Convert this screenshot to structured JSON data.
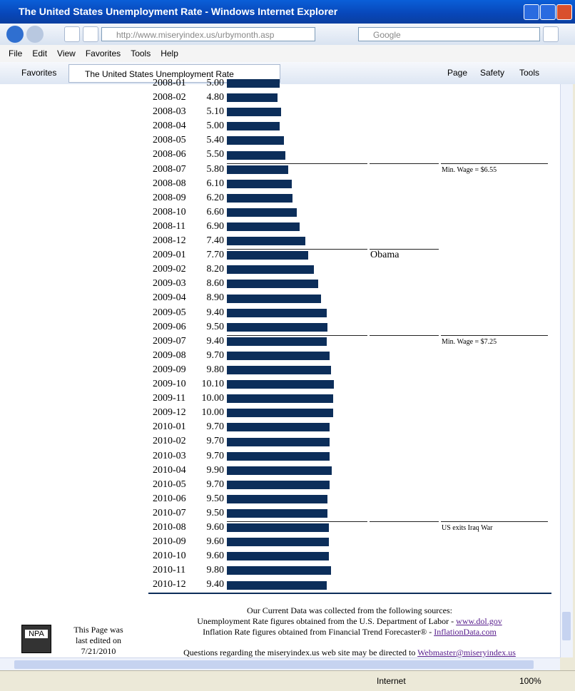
{
  "browser": {
    "window_title": "The United States Unemployment Rate - Windows Internet Explorer",
    "url": "http://www.miseryindex.us/urbymonth.asp",
    "search_placeholder": "Google",
    "menus": [
      "File",
      "Edit",
      "View",
      "Favorites",
      "Tools",
      "Help"
    ],
    "favorites": "Favorites",
    "tab_title": "The United States Unemployment Rate",
    "commands": [
      "Page",
      "Safety",
      "Tools"
    ],
    "zone": "Internet",
    "zoom": "100%"
  },
  "table": {
    "rows": [
      {
        "month": "2008-01",
        "rate": {
          "value": 5.0,
          "label": "5.00"
        }
      },
      {
        "month": "2008-02",
        "rate": {
          "value": 4.8,
          "label": "4.80"
        }
      },
      {
        "month": "2008-03",
        "rate": {
          "value": 5.1,
          "label": "5.10"
        }
      },
      {
        "month": "2008-04",
        "rate": {
          "value": 5.0,
          "label": "5.00"
        }
      },
      {
        "month": "2008-05",
        "rate": {
          "value": 5.4,
          "label": "5.40"
        }
      },
      {
        "month": "2008-06",
        "rate": {
          "value": 5.5,
          "label": "5.50"
        }
      },
      {
        "month": "2008-07",
        "rate": {
          "value": 5.8,
          "label": "5.80"
        },
        "note": "Min. Wage = $6.55"
      },
      {
        "month": "2008-08",
        "rate": {
          "value": 6.1,
          "label": "6.10"
        }
      },
      {
        "month": "2008-09",
        "rate": {
          "value": 6.2,
          "label": "6.20"
        }
      },
      {
        "month": "2008-10",
        "rate": {
          "value": 6.6,
          "label": "6.60"
        }
      },
      {
        "month": "2008-11",
        "rate": {
          "value": 6.9,
          "label": "6.90"
        }
      },
      {
        "month": "2008-12",
        "rate": {
          "value": 7.4,
          "label": "7.40"
        }
      },
      {
        "month": "2009-01",
        "rate": {
          "value": 7.7,
          "label": "7.70"
        },
        "event": "Obama"
      },
      {
        "month": "2009-02",
        "rate": {
          "value": 8.2,
          "label": "8.20"
        }
      },
      {
        "month": "2009-03",
        "rate": {
          "value": 8.6,
          "label": "8.60"
        }
      },
      {
        "month": "2009-04",
        "rate": {
          "value": 8.9,
          "label": "8.90"
        }
      },
      {
        "month": "2009-05",
        "rate": {
          "value": 9.4,
          "label": "9.40"
        }
      },
      {
        "month": "2009-06",
        "rate": {
          "value": 9.5,
          "label": "9.50"
        }
      },
      {
        "month": "2009-07",
        "rate": {
          "value": 9.4,
          "label": "9.40"
        },
        "note": "Min. Wage = $7.25"
      },
      {
        "month": "2009-08",
        "rate": {
          "value": 9.7,
          "label": "9.70"
        }
      },
      {
        "month": "2009-09",
        "rate": {
          "value": 9.8,
          "label": "9.80"
        }
      },
      {
        "month": "2009-10",
        "rate": {
          "value": 10.1,
          "label": "10.10"
        }
      },
      {
        "month": "2009-11",
        "rate": {
          "value": 10.0,
          "label": "10.00"
        }
      },
      {
        "month": "2009-12",
        "rate": {
          "value": 10.0,
          "label": "10.00"
        }
      },
      {
        "month": "2010-01",
        "rate": {
          "value": 9.7,
          "label": "9.70"
        }
      },
      {
        "month": "2010-02",
        "rate": {
          "value": 9.7,
          "label": "9.70"
        }
      },
      {
        "month": "2010-03",
        "rate": {
          "value": 9.7,
          "label": "9.70"
        }
      },
      {
        "month": "2010-04",
        "rate": {
          "value": 9.9,
          "label": "9.90"
        }
      },
      {
        "month": "2010-05",
        "rate": {
          "value": 9.7,
          "label": "9.70"
        }
      },
      {
        "month": "2010-06",
        "rate": {
          "value": 9.5,
          "label": "9.50"
        }
      },
      {
        "month": "2010-07",
        "rate": {
          "value": 9.5,
          "label": "9.50"
        }
      },
      {
        "month": "2010-08",
        "rate": {
          "value": 9.6,
          "label": "9.60"
        },
        "note": "US exits Iraq War"
      },
      {
        "month": "2010-09",
        "rate": {
          "value": 9.6,
          "label": "9.60"
        }
      },
      {
        "month": "2010-10",
        "rate": {
          "value": 9.6,
          "label": "9.60"
        }
      },
      {
        "month": "2010-11",
        "rate": {
          "value": 9.8,
          "label": "9.80"
        }
      },
      {
        "month": "2010-12",
        "rate": {
          "value": 9.4,
          "label": "9.40"
        }
      }
    ]
  },
  "footer": {
    "sources_heading": "Our Current Data was collected from the following sources:",
    "unemployment_source": "Unemployment Rate figures obtained from the U.S. Department of Labor - ",
    "unemployment_link": "www.dol.gov",
    "inflation_source": "Inflation Rate figures obtained from Financial Trend Forecaster® - ",
    "inflation_link": "InflationData.com",
    "contact": "Questions regarding the miseryindex.us web site may be directed to ",
    "contact_link": "Webmaster@miseryindex.us",
    "logo": "NPA",
    "edited": "This Page was last edited on 7/21/2010"
  }
}
